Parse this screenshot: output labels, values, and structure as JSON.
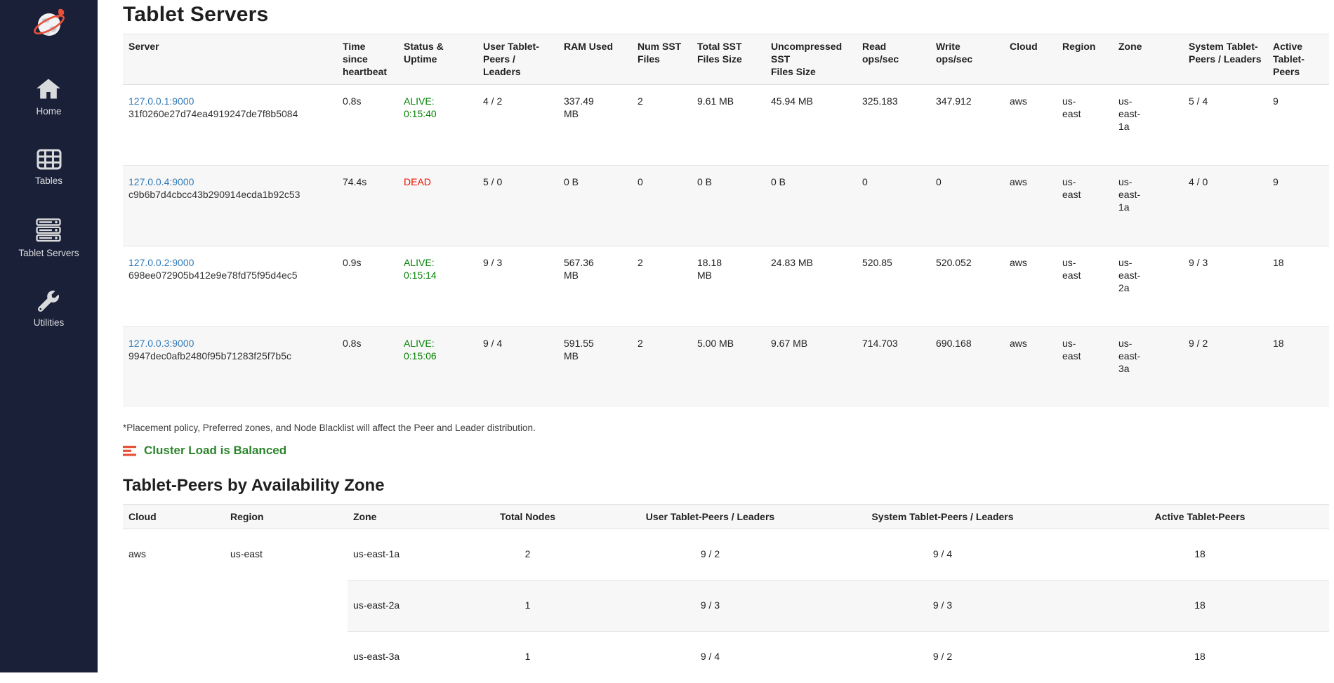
{
  "sidebar": {
    "items": [
      {
        "label": "Home"
      },
      {
        "label": "Tables"
      },
      {
        "label": "Tablet Servers"
      },
      {
        "label": "Utilities"
      }
    ]
  },
  "page": {
    "title": "Tablet Servers",
    "footnote": "*Placement policy, Preferred zones, and Node Blacklist will affect the Peer and Leader distribution.",
    "cluster_load_status": "Cluster Load is Balanced",
    "section2_title": "Tablet-Peers by Availability Zone"
  },
  "colors": {
    "sidebar_bg": "#1a2037",
    "link_blue": "#337ab7",
    "alive_green": "#058405",
    "dead_red": "#ee1100",
    "balanced_green": "#2b842b",
    "brand_orange_red": "#e8503a"
  },
  "servers_table": {
    "columns": [
      "Server",
      "Time\nsince\nheartbeat",
      "Status &\nUptime",
      "User Tablet-\nPeers /\nLeaders",
      "RAM Used",
      "Num SST\nFiles",
      "Total SST\nFiles Size",
      "Uncompressed\nSST\nFiles Size",
      "Read\nops/sec",
      "Write\nops/sec",
      "Cloud",
      "Region",
      "Zone",
      "System Tablet-\nPeers / Leaders",
      "Active\nTablet-\nPeers"
    ],
    "rows": [
      {
        "server_link": "127.0.0.1:9000",
        "server_uuid": "31f0260e27d74ea4919247de7f8b5084",
        "heartbeat": "0.8s",
        "status": "ALIVE: 0:15:40",
        "status_kind": "alive",
        "user_peers": "4 / 2",
        "ram": "337.49 MB",
        "num_sst": "2",
        "total_sst": "9.61 MB",
        "uncompressed_sst": "45.94 MB",
        "read_ops": "325.183",
        "write_ops": "347.912",
        "cloud": "aws",
        "region": "us-east",
        "zone": "us-east-1a",
        "system_peers": "5 / 4",
        "active_peers": "9"
      },
      {
        "server_link": "127.0.0.4:9000",
        "server_uuid": "c9b6b7d4cbcc43b290914ecda1b92c53",
        "heartbeat": "74.4s",
        "status": "DEAD",
        "status_kind": "dead",
        "user_peers": "5 / 0",
        "ram": "0 B",
        "num_sst": "0",
        "total_sst": "0 B",
        "uncompressed_sst": "0 B",
        "read_ops": "0",
        "write_ops": "0",
        "cloud": "aws",
        "region": "us-east",
        "zone": "us-east-1a",
        "system_peers": "4 / 0",
        "active_peers": "9"
      },
      {
        "server_link": "127.0.0.2:9000",
        "server_uuid": "698ee072905b412e9e78fd75f95d4ec5",
        "heartbeat": "0.9s",
        "status": "ALIVE: 0:15:14",
        "status_kind": "alive",
        "user_peers": "9 / 3",
        "ram": "567.36 MB",
        "num_sst": "2",
        "total_sst": "18.18 MB",
        "uncompressed_sst": "24.83 MB",
        "read_ops": "520.85",
        "write_ops": "520.052",
        "cloud": "aws",
        "region": "us-east",
        "zone": "us-east-2a",
        "system_peers": "9 / 3",
        "active_peers": "18"
      },
      {
        "server_link": "127.0.0.3:9000",
        "server_uuid": "9947dec0afb2480f95b71283f25f7b5c",
        "heartbeat": "0.8s",
        "status": "ALIVE: 0:15:06",
        "status_kind": "alive",
        "user_peers": "9 / 4",
        "ram": "591.55 MB",
        "num_sst": "2",
        "total_sst": "5.00 MB",
        "uncompressed_sst": "9.67 MB",
        "read_ops": "714.703",
        "write_ops": "690.168",
        "cloud": "aws",
        "region": "us-east",
        "zone": "us-east-3a",
        "system_peers": "9 / 2",
        "active_peers": "18"
      }
    ]
  },
  "zones_table": {
    "columns": [
      "Cloud",
      "Region",
      "Zone",
      "Total Nodes",
      "User Tablet-Peers / Leaders",
      "System Tablet-Peers / Leaders",
      "Active Tablet-Peers"
    ],
    "cloud": "aws",
    "region": "us-east",
    "rows": [
      {
        "zone": "us-east-1a",
        "total_nodes": "2",
        "user_peers": "9 / 2",
        "system_peers": "9 / 4",
        "active_peers": "18"
      },
      {
        "zone": "us-east-2a",
        "total_nodes": "1",
        "user_peers": "9 / 3",
        "system_peers": "9 / 3",
        "active_peers": "18"
      },
      {
        "zone": "us-east-3a",
        "total_nodes": "1",
        "user_peers": "9 / 4",
        "system_peers": "9 / 2",
        "active_peers": "18"
      }
    ]
  }
}
